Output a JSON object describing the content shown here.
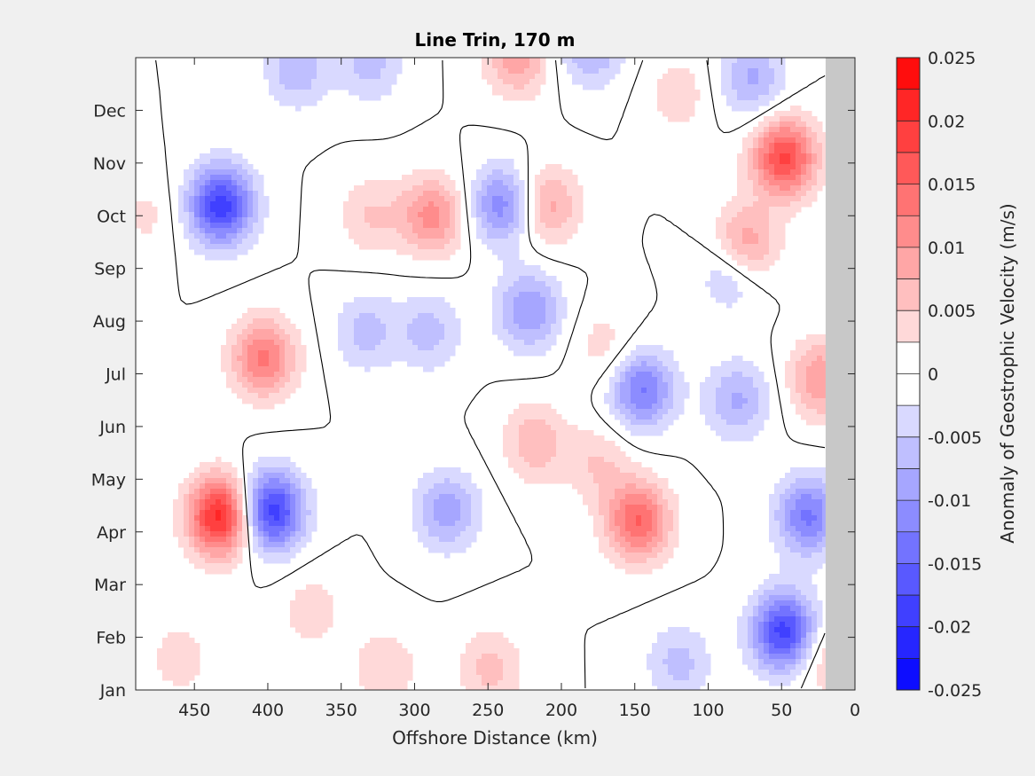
{
  "chart_data": {
    "type": "heatmap",
    "title": "Line Trin, 170 m",
    "xlabel": "Offshore Distance (km)",
    "ylabel": "",
    "colorbar_label": "Anomaly of Geostrophic Velocity (m/s)",
    "xlim": [
      490,
      0
    ],
    "x_reversed": true,
    "xticks": [
      450,
      400,
      350,
      300,
      250,
      200,
      150,
      100,
      50,
      0
    ],
    "yticks": [
      "Jan",
      "Feb",
      "Mar",
      "Apr",
      "May",
      "Jun",
      "Jul",
      "Aug",
      "Sep",
      "Oct",
      "Nov",
      "Dec"
    ],
    "ylim": [
      1,
      13
    ],
    "clim": [
      -0.025,
      0.025
    ],
    "colorbar_ticks": [
      "0.025",
      "0.02",
      "0.015",
      "0.01",
      "0.005",
      "0",
      "-0.005",
      "-0.01",
      "-0.015",
      "-0.02",
      "-0.025"
    ],
    "contour_levels": [
      -0.025,
      -0.0225,
      -0.02,
      -0.0175,
      -0.015,
      -0.0125,
      -0.01,
      -0.0075,
      -0.005,
      -0.0025,
      0,
      0.0025,
      0.005,
      0.0075,
      0.01,
      0.0125,
      0.015,
      0.0175,
      0.02,
      0.0225,
      0.025
    ],
    "zero_contour": true,
    "masked_region_km": [
      20,
      0
    ],
    "colormap": {
      "negative": "#0000ff",
      "zero": "#ffffff",
      "positive": "#ff0000"
    },
    "features": [
      {
        "x": 432,
        "t": 10.2,
        "v": -0.019
      },
      {
        "x": 432,
        "t": 4.3,
        "v": 0.022
      },
      {
        "x": 398,
        "t": 4.4,
        "v": -0.02
      },
      {
        "x": 403,
        "t": 7.3,
        "v": 0.013
      },
      {
        "x": 48,
        "t": 11.1,
        "v": 0.018
      },
      {
        "x": 76,
        "t": 9.4,
        "v": 0.013
      },
      {
        "x": 48,
        "t": 2.1,
        "v": -0.019
      },
      {
        "x": 32,
        "t": 4.3,
        "v": -0.013
      },
      {
        "x": 148,
        "t": 4.2,
        "v": 0.015
      },
      {
        "x": 145,
        "t": 6.7,
        "v": -0.013
      },
      {
        "x": 288,
        "t": 10.0,
        "v": 0.011
      },
      {
        "x": 240,
        "t": 10.2,
        "v": -0.012
      },
      {
        "x": 210,
        "t": 10.2,
        "v": 0.009
      },
      {
        "x": 222,
        "t": 8.2,
        "v": -0.01
      },
      {
        "x": 278,
        "t": 4.4,
        "v": -0.009
      },
      {
        "x": 218,
        "t": 5.7,
        "v": 0.007
      },
      {
        "x": 23,
        "t": 6.9,
        "v": 0.01
      },
      {
        "x": 83,
        "t": 9.0,
        "v": -0.009
      },
      {
        "x": 230,
        "t": 13.0,
        "v": 0.009
      },
      {
        "x": 80,
        "t": 6.5,
        "v": -0.008
      },
      {
        "x": 333,
        "t": 7.8,
        "v": -0.006
      },
      {
        "x": 290,
        "t": 7.8,
        "v": -0.006
      },
      {
        "x": 180,
        "t": 13.2,
        "v": -0.008
      },
      {
        "x": 320,
        "t": 1.4,
        "v": 0.005
      },
      {
        "x": 248,
        "t": 1.4,
        "v": 0.006
      },
      {
        "x": 120,
        "t": 1.5,
        "v": -0.006
      },
      {
        "x": 330,
        "t": 12.9,
        "v": -0.006
      },
      {
        "x": 460,
        "t": 1.6,
        "v": 0.004
      },
      {
        "x": 70,
        "t": 12.6,
        "v": -0.008
      },
      {
        "x": 380,
        "t": 12.8,
        "v": -0.007
      },
      {
        "x": 330,
        "t": 10.0,
        "v": 0.005
      },
      {
        "x": 175,
        "t": 5.3,
        "v": 0.005
      },
      {
        "x": 120,
        "t": 12.3,
        "v": 0.004
      },
      {
        "x": 170,
        "t": 7.5,
        "v": 0.004
      },
      {
        "x": 482,
        "t": 10.0,
        "v": 0.003
      },
      {
        "x": 370,
        "t": 2.5,
        "v": 0.004
      },
      {
        "x": 20,
        "t": 1.6,
        "v": 0.006
      }
    ]
  }
}
